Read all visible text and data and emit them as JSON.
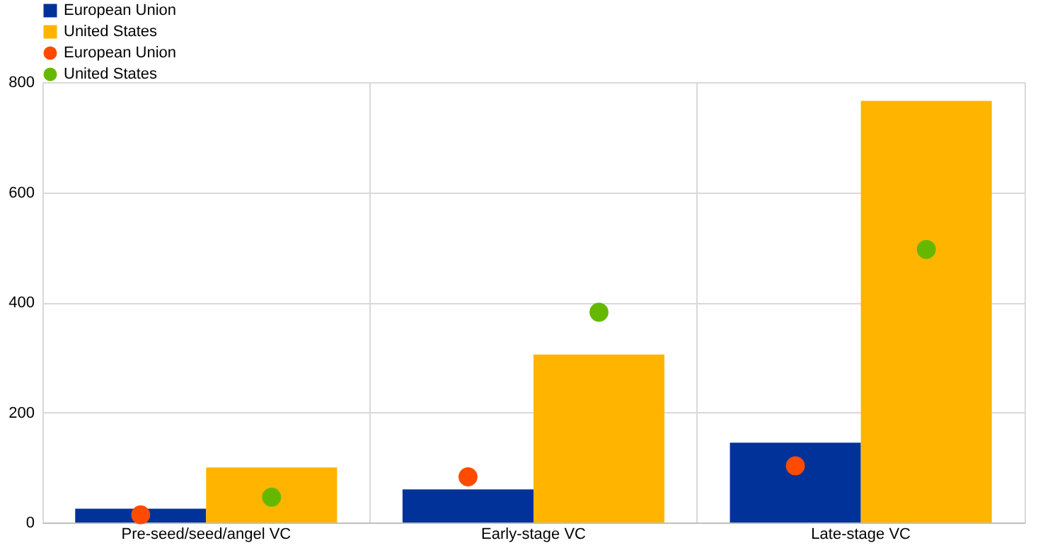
{
  "chart_data": {
    "type": "bar",
    "categories": [
      "Pre-seed/seed/angel VC",
      "Early-stage VC",
      "Late-stage VC"
    ],
    "series": [
      {
        "name": "European Union",
        "color": "#003299",
        "values": [
          25,
          60,
          145
        ]
      },
      {
        "name": "United States",
        "color": "#ffb400",
        "values": [
          100,
          305,
          766
        ]
      },
      {
        "name": "European Union",
        "color": "#ff4b00",
        "values": [
          14,
          83,
          103
        ],
        "type": "scatter",
        "marker": "circle"
      },
      {
        "name": "United States",
        "color": "#65b800",
        "values": [
          46,
          382,
          496
        ],
        "type": "scatter",
        "marker": "circle"
      }
    ],
    "ylim": [
      0,
      800
    ],
    "yticks": [
      0,
      200,
      400,
      600,
      800
    ],
    "grid": true,
    "legend": "top left"
  }
}
